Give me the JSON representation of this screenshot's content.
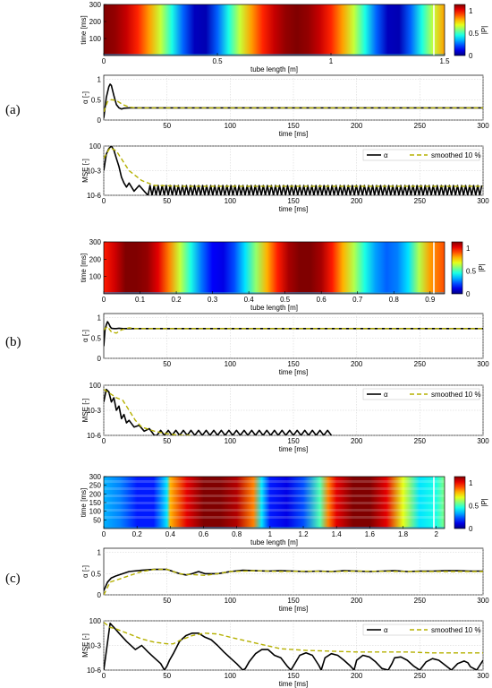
{
  "panel_labels": [
    "(a)",
    "(b)",
    "(c)"
  ],
  "colorbar": {
    "ticks": [
      "0",
      "0.5",
      "1"
    ],
    "label": "|P|"
  },
  "chart_data": [
    {
      "panel": "(a)",
      "type": "heatmap",
      "xlabel": "tube length [m]",
      "ylabel": "time [ms]",
      "xlim": [
        0,
        1.5
      ],
      "ylim": [
        0,
        300
      ],
      "xticks": [
        "0",
        "0.5",
        "1",
        "1.5"
      ],
      "yticks": [
        "100",
        "200",
        "300"
      ],
      "colorbar_ticks": [
        "0",
        "0.5",
        "1"
      ],
      "colorbar_label": "|P|",
      "profile_x": [
        0.0,
        0.05,
        0.1,
        0.15,
        0.2,
        0.25,
        0.3,
        0.35,
        0.4,
        0.45,
        0.5,
        0.55,
        0.6,
        0.65,
        0.7,
        0.75,
        0.8,
        0.85,
        0.9,
        0.95,
        1.0,
        1.05,
        1.1,
        1.15,
        1.2,
        1.25,
        1.3,
        1.35,
        1.4,
        1.45,
        1.5
      ],
      "profile_p": [
        1.0,
        0.98,
        0.93,
        0.84,
        0.72,
        0.57,
        0.4,
        0.22,
        0.06,
        0.05,
        0.22,
        0.4,
        0.57,
        0.72,
        0.84,
        0.93,
        0.98,
        1.0,
        0.98,
        0.93,
        0.84,
        0.72,
        0.57,
        0.4,
        0.22,
        0.06,
        0.05,
        0.22,
        0.4,
        0.57,
        0.72
      ],
      "bottom_strip_ms": 10
    },
    {
      "panel": "(a)",
      "type": "line",
      "xlabel": "time [ms]",
      "ylabel": "α [-]",
      "xlim": [
        0,
        300
      ],
      "ylim": [
        0,
        1.1
      ],
      "yscale": "linear",
      "xticks": [
        "50",
        "100",
        "150",
        "200",
        "250",
        "300"
      ],
      "yticks": [
        "0",
        "0.5",
        "1"
      ],
      "grid": true,
      "series": [
        {
          "style": "solid",
          "color": "#000000",
          "x": [
            0,
            2,
            4,
            5,
            6,
            8,
            10,
            12,
            14,
            16,
            20,
            25,
            30,
            300
          ],
          "y": [
            0.05,
            0.55,
            0.82,
            0.88,
            0.85,
            0.6,
            0.38,
            0.3,
            0.27,
            0.29,
            0.3,
            0.3,
            0.3,
            0.3
          ]
        },
        {
          "style": "dashed",
          "color": "#b5b000",
          "x": [
            0,
            3,
            6,
            10,
            15,
            20,
            25,
            30,
            40,
            300
          ],
          "y": [
            0.2,
            0.45,
            0.5,
            0.48,
            0.38,
            0.32,
            0.3,
            0.3,
            0.3,
            0.3
          ]
        }
      ]
    },
    {
      "panel": "(a)",
      "type": "line",
      "xlabel": "time [ms]",
      "ylabel": "MSE [-]",
      "xlim": [
        0,
        300
      ],
      "ylim": [
        -6,
        0
      ],
      "yscale": "log",
      "xticks": [
        "0",
        "50",
        "100",
        "150",
        "200",
        "250",
        "300"
      ],
      "yticks": [
        "10-6",
        "10-3",
        "100"
      ],
      "legend": [
        "α",
        "smoothed 10 %"
      ],
      "legend_position": "top-right",
      "grid": true,
      "series": [
        {
          "style": "solid",
          "color": "#000000",
          "name": "α",
          "x": [
            0,
            2,
            4,
            6,
            8,
            10,
            12,
            14,
            16,
            18,
            20,
            24,
            28,
            32
          ],
          "y": [
            -3,
            -1,
            -0.3,
            0,
            -0.5,
            -1.5,
            -2.5,
            -3.8,
            -4.5,
            -5,
            -4.5,
            -5.5,
            -4.8,
            -5.5
          ],
          "tail": {
            "start": 35,
            "end": 300,
            "period": 3.2,
            "high": -4.8,
            "low": -6
          }
        },
        {
          "style": "dashed",
          "color": "#b5b000",
          "name": "smoothed 10 %",
          "x": [
            0,
            5,
            10,
            15,
            20,
            30,
            40,
            60,
            80,
            300
          ],
          "y": [
            -1.5,
            -0.2,
            -0.6,
            -1.8,
            -3.0,
            -4.2,
            -4.8,
            -4.9,
            -4.9,
            -4.9
          ]
        }
      ]
    },
    {
      "panel": "(b)",
      "type": "heatmap",
      "xlabel": "tube length [m]",
      "ylabel": "time [ms]",
      "xlim": [
        0,
        0.94
      ],
      "ylim": [
        0,
        300
      ],
      "xticks": [
        "0",
        "0.1",
        "0.2",
        "0.3",
        "0.4",
        "0.5",
        "0.6",
        "0.7",
        "0.8",
        "0.9"
      ],
      "yticks": [
        "100",
        "200",
        "300"
      ],
      "colorbar_ticks": [
        "0",
        "0.5",
        "1"
      ],
      "colorbar_label": "|P|",
      "profile_x": [
        0.0,
        0.03,
        0.06,
        0.09,
        0.12,
        0.15,
        0.18,
        0.21,
        0.24,
        0.27,
        0.3,
        0.33,
        0.36,
        0.39,
        0.42,
        0.45,
        0.48,
        0.51,
        0.54,
        0.57,
        0.6,
        0.63,
        0.66,
        0.69,
        0.72,
        0.75,
        0.78,
        0.81,
        0.84,
        0.87,
        0.9,
        0.94
      ],
      "profile_p": [
        0.85,
        0.92,
        1.0,
        1.0,
        0.98,
        0.9,
        0.75,
        0.57,
        0.4,
        0.24,
        0.12,
        0.1,
        0.2,
        0.35,
        0.52,
        0.7,
        0.85,
        0.96,
        1.0,
        1.0,
        0.96,
        0.85,
        0.7,
        0.55,
        0.4,
        0.28,
        0.22,
        0.25,
        0.35,
        0.55,
        0.72,
        0.8
      ],
      "bottom_strip_ms": 10
    },
    {
      "panel": "(b)",
      "type": "line",
      "xlabel": "time [ms]",
      "ylabel": "α [-]",
      "xlim": [
        0,
        300
      ],
      "ylim": [
        0,
        1.1
      ],
      "yscale": "linear",
      "xticks": [
        "50",
        "100",
        "150",
        "200",
        "250",
        "300"
      ],
      "yticks": [
        "0",
        "0.5",
        "1"
      ],
      "grid": true,
      "series": [
        {
          "style": "solid",
          "color": "#000000",
          "x": [
            0,
            1,
            2,
            3,
            4,
            5,
            6,
            8,
            10,
            12,
            15,
            20,
            300
          ],
          "y": [
            0.3,
            0.7,
            0.82,
            0.9,
            0.85,
            0.78,
            0.74,
            0.73,
            0.73,
            0.74,
            0.73,
            0.73,
            0.73
          ]
        },
        {
          "style": "dashed",
          "color": "#b5b000",
          "x": [
            0,
            3,
            6,
            10,
            14,
            20,
            25,
            300
          ],
          "y": [
            0.7,
            0.78,
            0.65,
            0.62,
            0.7,
            0.75,
            0.73,
            0.73
          ]
        }
      ]
    },
    {
      "panel": "(b)",
      "type": "line",
      "xlabel": "time [ms]",
      "ylabel": "MSE [-]",
      "xlim": [
        0,
        300
      ],
      "ylim": [
        -6,
        0
      ],
      "yscale": "log",
      "xticks": [
        "0",
        "50",
        "100",
        "150",
        "200",
        "250",
        "300"
      ],
      "yticks": [
        "10-6",
        "10-3",
        "100"
      ],
      "legend": [
        "α",
        "smoothed 10 %"
      ],
      "legend_position": "top-right",
      "grid": true,
      "series": [
        {
          "style": "solid",
          "color": "#000000",
          "name": "α",
          "x": [
            0,
            2,
            4,
            6,
            8,
            10,
            12,
            14,
            16,
            18,
            20,
            24,
            28,
            32,
            36,
            40
          ],
          "y": [
            -2,
            -0.5,
            -0.8,
            -2,
            -1.5,
            -3,
            -2.5,
            -4,
            -3.5,
            -4.5,
            -4.2,
            -5,
            -4.8,
            -5.5,
            -5.2,
            -6
          ],
          "tail": {
            "start": 42,
            "end": 180,
            "period": 6,
            "high": -5.4,
            "low": -6
          }
        },
        {
          "style": "dashed",
          "color": "#b5b000",
          "x": [
            0,
            5,
            10,
            15,
            20,
            25,
            30,
            40,
            50,
            60,
            70
          ],
          "y": [
            -0.5,
            -1.0,
            -1.5,
            -1.8,
            -3.0,
            -4.2,
            -5.0,
            -5.5,
            -5.8,
            -6.0,
            -6.0
          ]
        }
      ]
    },
    {
      "panel": "(c)",
      "type": "heatmap",
      "xlabel": "tube length [m]",
      "ylabel": "time [ms]",
      "xlim": [
        0,
        2.05
      ],
      "ylim": [
        0,
        300
      ],
      "xticks": [
        "0",
        "0.2",
        "0.4",
        "0.6",
        "0.8",
        "1",
        "1.2",
        "1.4",
        "1.6",
        "1.8",
        "2"
      ],
      "yticks": [
        "50",
        "100",
        "150",
        "200",
        "250",
        "300"
      ],
      "colorbar_ticks": [
        "0",
        "0.5",
        "1"
      ],
      "colorbar_label": "|P|",
      "profile_x": [
        0.0,
        0.1,
        0.2,
        0.3,
        0.38,
        0.4,
        0.5,
        0.6,
        0.7,
        0.8,
        0.9,
        0.95,
        1.0,
        1.1,
        1.2,
        1.3,
        1.35,
        1.4,
        1.5,
        1.6,
        1.7,
        1.8,
        1.9,
        2.0,
        2.05
      ],
      "profile_p": [
        0.3,
        0.25,
        0.15,
        0.15,
        0.35,
        0.7,
        0.9,
        1.0,
        1.0,
        0.95,
        0.75,
        0.35,
        0.15,
        0.1,
        0.2,
        0.45,
        0.75,
        0.9,
        1.0,
        1.0,
        0.9,
        0.6,
        0.35,
        0.4,
        0.5
      ],
      "bottom_strip_ms": 10
    },
    {
      "panel": "(c)",
      "type": "line",
      "xlabel": "time [ms]",
      "ylabel": "α [-]",
      "xlim": [
        0,
        300
      ],
      "ylim": [
        0,
        1.1
      ],
      "yscale": "linear",
      "xticks": [
        "50",
        "100",
        "150",
        "200",
        "250",
        "300"
      ],
      "yticks": [
        "0",
        "0.5",
        "1"
      ],
      "grid": true,
      "series": [
        {
          "style": "solid",
          "color": "#000000",
          "x": [
            0,
            3,
            6,
            10,
            15,
            20,
            30,
            40,
            50,
            55,
            60,
            65,
            70,
            75,
            80,
            90,
            100,
            110,
            120,
            130,
            140,
            150,
            160,
            170,
            180,
            190,
            200,
            210,
            220,
            230,
            240,
            250,
            260,
            270,
            280,
            290,
            300
          ],
          "y": [
            0.1,
            0.3,
            0.4,
            0.45,
            0.5,
            0.55,
            0.58,
            0.6,
            0.6,
            0.55,
            0.5,
            0.47,
            0.5,
            0.55,
            0.5,
            0.5,
            0.55,
            0.58,
            0.57,
            0.56,
            0.57,
            0.56,
            0.55,
            0.56,
            0.55,
            0.57,
            0.56,
            0.55,
            0.56,
            0.57,
            0.55,
            0.56,
            0.56,
            0.57,
            0.57,
            0.56,
            0.56
          ]
        },
        {
          "style": "dashed",
          "color": "#b5b000",
          "x": [
            0,
            5,
            10,
            20,
            30,
            40,
            50,
            60,
            65,
            70,
            80,
            90,
            100,
            120,
            140,
            160,
            180,
            200,
            240,
            300
          ],
          "y": [
            0.0,
            0.3,
            0.35,
            0.45,
            0.55,
            0.6,
            0.6,
            0.5,
            0.48,
            0.48,
            0.46,
            0.5,
            0.55,
            0.57,
            0.55,
            0.56,
            0.55,
            0.56,
            0.55,
            0.55
          ]
        }
      ]
    },
    {
      "panel": "(c)",
      "type": "line",
      "xlabel": "time [ms]",
      "ylabel": "MSE [-]",
      "xlim": [
        0,
        300
      ],
      "ylim": [
        -6,
        0
      ],
      "yscale": "log",
      "xticks": [
        "0",
        "50",
        "100",
        "150",
        "200",
        "250",
        "300"
      ],
      "yticks": [
        "10-6",
        "10-3",
        "100"
      ],
      "legend": [
        "α",
        "smoothed 10 %"
      ],
      "legend_position": "top-right",
      "grid": true,
      "series": [
        {
          "style": "solid",
          "color": "#000000",
          "name": "α",
          "x": [
            0,
            5,
            8,
            12,
            18,
            25,
            30,
            35,
            40,
            45,
            48,
            50,
            52,
            55,
            60,
            65,
            70,
            75,
            80,
            85,
            90,
            95,
            100,
            105,
            110,
            112,
            115,
            120,
            125,
            130,
            135,
            140,
            145,
            148,
            150,
            155,
            160,
            165,
            170,
            172,
            175,
            180,
            185,
            190,
            195,
            198,
            200,
            205,
            210,
            215,
            220,
            225,
            228,
            230,
            235,
            240,
            245,
            250,
            255,
            260,
            265,
            270,
            275,
            280,
            285,
            288,
            290,
            295,
            300
          ],
          "y": [
            -6,
            -0.3,
            -0.8,
            -1.5,
            -2.5,
            -3.5,
            -3,
            -3.8,
            -4.5,
            -5.2,
            -6,
            -5.5,
            -4.8,
            -4,
            -2.5,
            -1.8,
            -1.5,
            -1.5,
            -2,
            -2.3,
            -3,
            -3.8,
            -4.5,
            -5.2,
            -6,
            -5.8,
            -5,
            -4,
            -3.5,
            -3.5,
            -4.2,
            -4.5,
            -5.5,
            -6,
            -5.5,
            -4.2,
            -3.9,
            -4.2,
            -5.4,
            -6,
            -4.5,
            -4,
            -4.2,
            -4.8,
            -5.5,
            -6,
            -4.8,
            -4.2,
            -4.4,
            -5,
            -5.8,
            -6,
            -5.2,
            -4.5,
            -4.4,
            -4.8,
            -5.5,
            -6,
            -5,
            -4.6,
            -4.8,
            -5.4,
            -6,
            -5.2,
            -4.9,
            -5.1,
            -5.6,
            -6,
            -4.8
          ]
        },
        {
          "style": "dashed",
          "color": "#b5b000",
          "name": "smoothed 10 %",
          "x": [
            0,
            5,
            10,
            20,
            30,
            40,
            50,
            55,
            60,
            70,
            80,
            90,
            100,
            120,
            140,
            160,
            180,
            200,
            220,
            240,
            260,
            280,
            300
          ],
          "y": [
            -0.2,
            -0.8,
            -1.0,
            -1.6,
            -2.2,
            -2.6,
            -2.8,
            -2.8,
            -2.4,
            -1.8,
            -1.5,
            -1.6,
            -2.0,
            -2.7,
            -3.4,
            -3.6,
            -3.7,
            -3.8,
            -3.8,
            -3.8,
            -3.9,
            -3.9,
            -3.9
          ]
        }
      ]
    }
  ]
}
